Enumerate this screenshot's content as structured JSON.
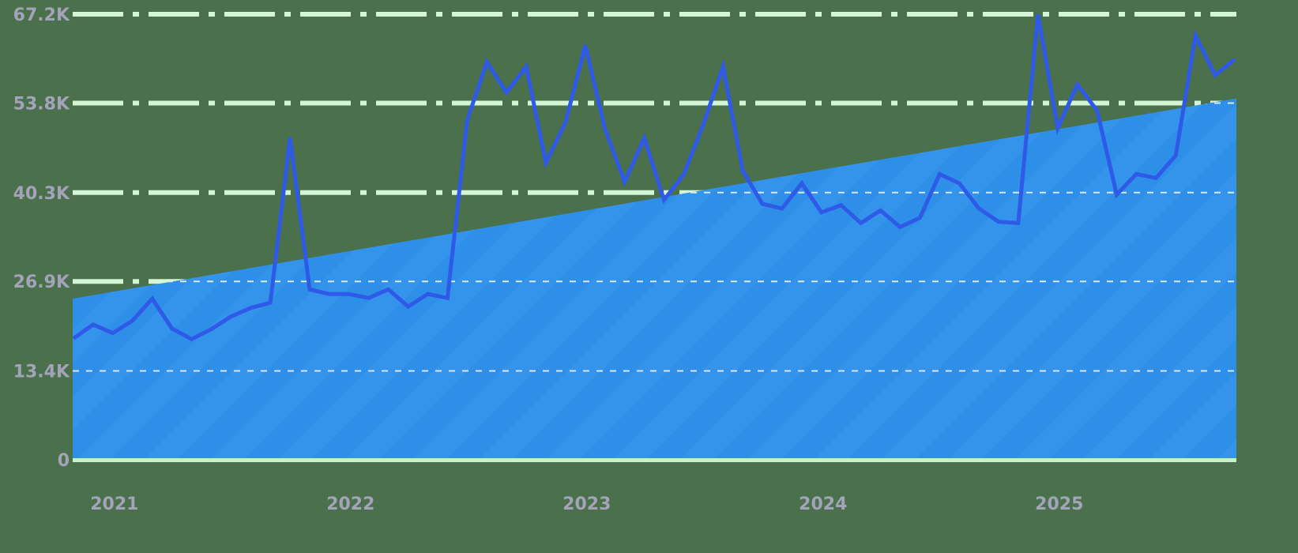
{
  "chart_data": {
    "type": "line",
    "title": "",
    "xlabel": "",
    "ylabel": "",
    "ylim": [
      0,
      67200
    ],
    "grid": true,
    "legend": null,
    "y_ticks": [
      {
        "value": 0,
        "label": "0"
      },
      {
        "value": 13400,
        "label": "13.4K"
      },
      {
        "value": 26900,
        "label": "26.9K"
      },
      {
        "value": 40300,
        "label": "40.3K"
      },
      {
        "value": 53800,
        "label": "53.8K"
      },
      {
        "value": 67200,
        "label": "67.2K"
      }
    ],
    "x_ticks": [
      {
        "index": 2,
        "label": "2021"
      },
      {
        "index": 14,
        "label": "2022"
      },
      {
        "index": 26,
        "label": "2023"
      },
      {
        "index": 38,
        "label": "2024"
      },
      {
        "index": 50,
        "label": "2025"
      }
    ],
    "series": [
      {
        "name": "values",
        "type": "line",
        "color": "#2f5ae8",
        "values": [
          18300,
          20400,
          19100,
          21000,
          24300,
          19800,
          18200,
          19700,
          21600,
          22900,
          23700,
          48600,
          25700,
          25000,
          25000,
          24400,
          25700,
          23100,
          25000,
          24400,
          51200,
          60000,
          55400,
          59300,
          44800,
          50900,
          62500,
          49900,
          41900,
          48500,
          39200,
          43000,
          50600,
          59300,
          43600,
          38600,
          37900,
          41700,
          37300,
          38400,
          35700,
          37600,
          35100,
          36500,
          43100,
          41700,
          37900,
          35900,
          35700,
          67200,
          50000,
          56600,
          52700,
          40000,
          43100,
          42500,
          45900,
          64000,
          58000,
          60400
        ]
      },
      {
        "name": "trend",
        "type": "area",
        "color": "#2e8fe8",
        "start": 24300,
        "end": 54500
      }
    ]
  },
  "colors": {
    "background": "#4a704c",
    "grid_above": "#d4f5d6",
    "grid_inside": "#dde6f5",
    "baseline": "#c8f0cc",
    "area": "#2e8fe8",
    "area_stripe": "#3a9af0",
    "line": "#2f5ae8",
    "tick_text": "#a3a3ba"
  }
}
